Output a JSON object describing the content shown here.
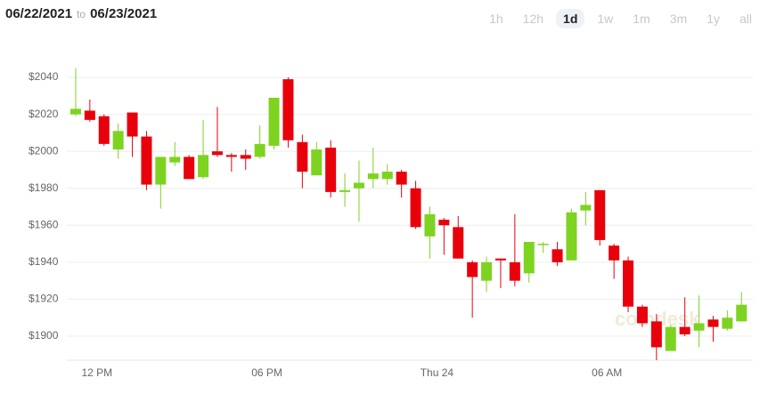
{
  "header": {
    "start_date": "06/22/2021",
    "separator": "to",
    "end_date": "06/23/2021"
  },
  "tabs": [
    "1h",
    "12h",
    "1d",
    "1w",
    "1m",
    "3m",
    "1y",
    "all"
  ],
  "selected_tab": 2,
  "chart_data": {
    "type": "candlestick",
    "watermark": "coindesk",
    "categories": [
      null,
      "12 PM",
      null,
      null,
      null,
      null,
      null,
      null,
      null,
      null,
      null,
      null,
      null,
      "06 PM",
      null,
      null,
      null,
      null,
      null,
      null,
      null,
      null,
      null,
      null,
      null,
      "Thu 24",
      null,
      null,
      null,
      null,
      null,
      null,
      null,
      null,
      null,
      null,
      null,
      "06 AM",
      null,
      null,
      null,
      null,
      null,
      null,
      null,
      null,
      null,
      null
    ],
    "open": [
      2020,
      2022,
      2019,
      2001,
      2021,
      2008,
      1982,
      1994,
      1997,
      1986,
      2000,
      1998,
      1998,
      1997,
      2003,
      2039,
      2005,
      1987,
      2002,
      1978,
      1980,
      1985,
      1985,
      1989,
      1980,
      1954,
      1963,
      1959,
      1940,
      1930,
      1942,
      1940,
      1934,
      1950,
      1947,
      1941,
      1968,
      1979,
      1949,
      1941,
      1916,
      1908,
      1892,
      1905,
      1903,
      1909,
      1904,
      1908
    ],
    "high": [
      2045,
      2028,
      2020,
      2015,
      2021,
      2011,
      1997,
      2005,
      1998,
      2017,
      2024,
      1999,
      2001,
      2014,
      2029,
      2040,
      2009,
      2005,
      2006,
      1988,
      1995,
      2002,
      1993,
      1990,
      1984,
      1970,
      1964,
      1965,
      1941,
      1943,
      1942,
      1966,
      1951,
      1951,
      1951,
      1969,
      1978,
      1979,
      1950,
      1943,
      1917,
      1912,
      1906,
      1921,
      1922,
      1911,
      1914,
      1924
    ],
    "low": [
      2019,
      2016,
      2003,
      1996,
      1997,
      1979,
      1969,
      1992,
      1985,
      1985,
      1997,
      1989,
      1990,
      1996,
      2001,
      2002,
      1980,
      1987,
      1975,
      1970,
      1962,
      1980,
      1982,
      1975,
      1958,
      1942,
      1944,
      1942,
      1910,
      1924,
      1926,
      1927,
      1929,
      1945,
      1938,
      1941,
      1960,
      1949,
      1931,
      1913,
      1905,
      1887,
      1892,
      1900,
      1894,
      1897,
      1903,
      1908
    ],
    "close": [
      2023,
      2017,
      2004,
      2011,
      2008,
      1982,
      1997,
      1997,
      1985,
      1998,
      1998,
      1997,
      1996,
      2004,
      2029,
      2006,
      1989,
      2001,
      1978,
      1979,
      1983,
      1988,
      1989,
      1982,
      1959,
      1966,
      1960,
      1942,
      1932,
      1940,
      1941,
      1930,
      1951,
      1950,
      1940,
      1967,
      1971,
      1952,
      1941,
      1916,
      1907,
      1894,
      1905,
      1901,
      1907,
      1905,
      1910,
      1917
    ],
    "up_color": "#7ed321",
    "down_color": "#e8000b",
    "ylim": [
      1887,
      2053
    ],
    "yticks": [
      {
        "value": 1900,
        "label": "$1900"
      },
      {
        "value": 1920,
        "label": "$1920"
      },
      {
        "value": 1940,
        "label": "$1940"
      },
      {
        "value": 1960,
        "label": "$1960"
      },
      {
        "value": 1980,
        "label": "$1980"
      },
      {
        "value": 2000,
        "label": "$2000"
      },
      {
        "value": 2020,
        "label": "$2020"
      },
      {
        "value": 2040,
        "label": "$2040"
      }
    ],
    "grid": true
  }
}
